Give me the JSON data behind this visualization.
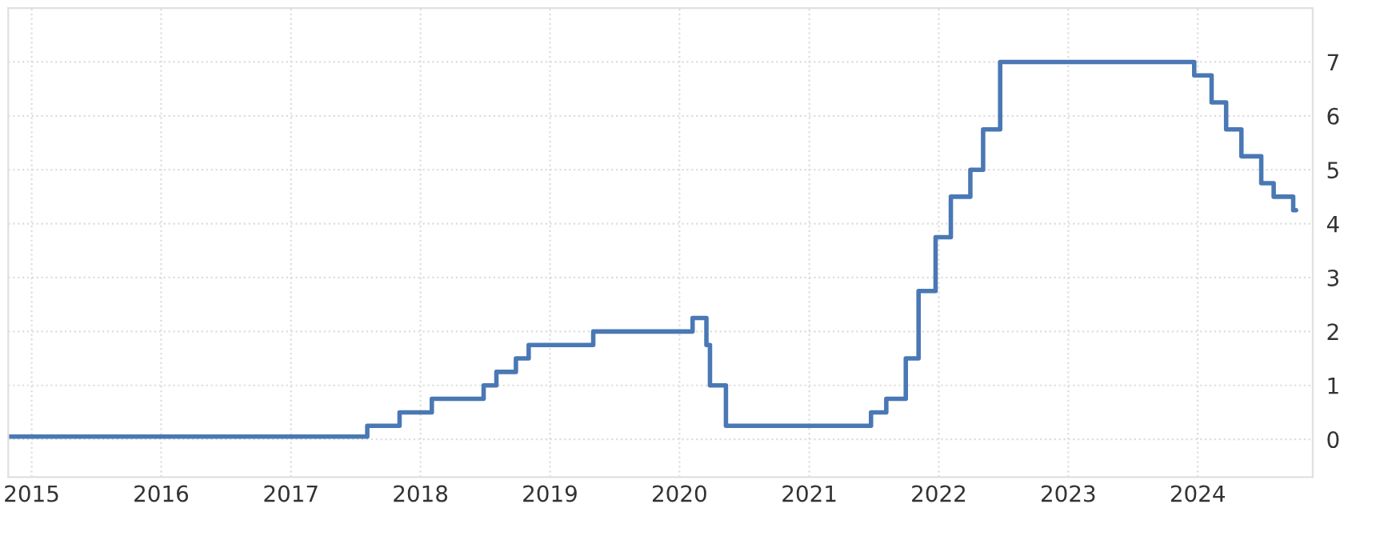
{
  "chart_data": {
    "type": "step",
    "x": [
      "2014-10-27",
      "2017-08-04",
      "2017-11-03",
      "2018-02-02",
      "2018-06-28",
      "2018-08-03",
      "2018-09-27",
      "2018-11-02",
      "2019-05-03",
      "2020-02-07",
      "2020-03-17",
      "2020-03-27",
      "2020-05-11",
      "2021-06-24",
      "2021-08-06",
      "2021-09-30",
      "2021-11-05",
      "2021-12-23",
      "2022-02-04",
      "2022-03-31",
      "2022-05-06",
      "2022-06-23",
      "2023-12-22",
      "2024-02-09",
      "2024-03-21",
      "2024-05-03",
      "2024-06-28",
      "2024-08-02",
      "2024-09-26",
      "2024-10-04"
    ],
    "series": [
      {
        "color": "#4a78b5",
        "values": [
          0.05,
          0.25,
          0.5,
          0.75,
          1.0,
          1.25,
          1.5,
          1.75,
          2.0,
          2.25,
          1.75,
          1.0,
          0.25,
          0.5,
          0.75,
          1.5,
          2.75,
          3.75,
          4.5,
          5.0,
          5.75,
          7.0,
          6.75,
          6.25,
          5.75,
          5.25,
          4.75,
          4.5,
          4.25,
          4.25
        ]
      }
    ],
    "xlim": [
      "2014-10-27",
      "2024-11-20"
    ],
    "xticks": [
      {
        "value": "2015-01-01",
        "label": "2015"
      },
      {
        "value": "2016-01-01",
        "label": "2016"
      },
      {
        "value": "2017-01-01",
        "label": "2017"
      },
      {
        "value": "2018-01-01",
        "label": "2018"
      },
      {
        "value": "2019-01-01",
        "label": "2019"
      },
      {
        "value": "2020-01-01",
        "label": "2020"
      },
      {
        "value": "2021-01-01",
        "label": "2021"
      },
      {
        "value": "2022-01-01",
        "label": "2022"
      },
      {
        "value": "2023-01-01",
        "label": "2023"
      },
      {
        "value": "2024-01-01",
        "label": "2024"
      }
    ],
    "ylim": [
      -0.7,
      8
    ],
    "yticks": [
      0,
      1,
      2,
      3,
      4,
      5,
      6,
      7
    ],
    "grid": true,
    "marker": "none",
    "line_style": "solid"
  }
}
